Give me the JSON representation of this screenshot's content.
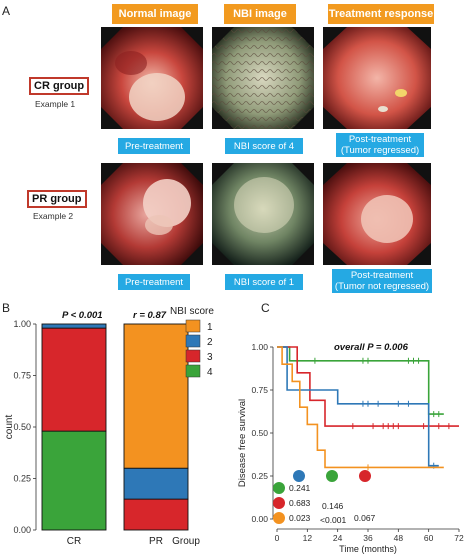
{
  "panel_a": {
    "letter": "A",
    "headers": [
      "Normal image",
      "NBI image",
      "Treatment response"
    ],
    "rows": [
      {
        "group": "CR group",
        "example": "Example 1",
        "captions": [
          [
            "Pre-treatment"
          ],
          [
            "NBI score of 4"
          ],
          [
            "Post-treatment",
            "(Tumor regressed)"
          ]
        ]
      },
      {
        "group": "PR group",
        "example": "Example 2",
        "captions": [
          [
            "Pre-treatment"
          ],
          [
            "NBI score of 1"
          ],
          [
            "Post-treatment",
            "(Tumor not regressed)"
          ]
        ]
      }
    ]
  },
  "panel_b": {
    "letter": "B",
    "stat_p": "P < 0.001",
    "stat_r": "r = 0.87",
    "legend_title": "NBI score"
  },
  "panel_c": {
    "letter": "C",
    "overall": "overall P = 0.006",
    "pvalues": {
      "r1": "0.241",
      "r2a": "0.683",
      "r2b": "0.146",
      "r3a": "0.023",
      "r3b": "<0.001",
      "r3c": "0.067"
    }
  },
  "colors": {
    "score1": "#f39220",
    "score2": "#2e78b7",
    "score3": "#d7262b",
    "score4": "#3aa43a"
  },
  "chart_data": [
    {
      "type": "bar",
      "stacked": true,
      "categories": [
        "CR",
        "PR"
      ],
      "series": [
        {
          "name": "1",
          "values": [
            0.0,
            0.7
          ]
        },
        {
          "name": "2",
          "values": [
            0.02,
            0.15
          ]
        },
        {
          "name": "3",
          "values": [
            0.5,
            0.15
          ]
        },
        {
          "name": "4",
          "values": [
            0.48,
            0.0
          ]
        }
      ],
      "xlabel": "Group",
      "ylabel": "count",
      "ylim": [
        0,
        1
      ],
      "yticks": [
        "0.00",
        "0.25",
        "0.50",
        "0.75",
        "1.00"
      ],
      "legend": "right"
    },
    {
      "type": "line",
      "step": true,
      "xlabel": "Time (months)",
      "ylabel": "Disease free survival",
      "xlim": [
        0,
        72
      ],
      "ylim": [
        0,
        1
      ],
      "xticks": [
        "0",
        "12",
        "24",
        "36",
        "48",
        "60",
        "72"
      ],
      "yticks": [
        "0.00",
        "0.25",
        "0.50",
        "0.75",
        "1.00"
      ],
      "series": [
        {
          "name": "4",
          "points": [
            [
              0,
              1
            ],
            [
              5,
              1
            ],
            [
              5,
              0.92
            ],
            [
              60,
              0.92
            ],
            [
              60,
              0.61
            ],
            [
              66,
              0.61
            ]
          ]
        },
        {
          "name": "3",
          "points": [
            [
              0,
              1
            ],
            [
              8,
              1
            ],
            [
              8,
              0.85
            ],
            [
              13,
              0.85
            ],
            [
              13,
              0.69
            ],
            [
              19,
              0.69
            ],
            [
              19,
              0.54
            ],
            [
              36,
              0.54
            ],
            [
              36,
              0.54
            ],
            [
              72,
              0.54
            ]
          ]
        },
        {
          "name": "2",
          "points": [
            [
              0,
              1
            ],
            [
              4,
              1
            ],
            [
              4,
              0.75
            ],
            [
              24,
              0.75
            ],
            [
              24,
              0.67
            ],
            [
              60,
              0.67
            ],
            [
              60,
              0.31
            ],
            [
              64,
              0.31
            ]
          ]
        },
        {
          "name": "1",
          "points": [
            [
              0,
              1
            ],
            [
              2,
              1
            ],
            [
              2,
              0.9
            ],
            [
              6,
              0.9
            ],
            [
              6,
              0.8
            ],
            [
              9,
              0.8
            ],
            [
              9,
              0.65
            ],
            [
              12,
              0.65
            ],
            [
              12,
              0.55
            ],
            [
              16,
              0.55
            ],
            [
              16,
              0.4
            ],
            [
              19,
              0.4
            ],
            [
              19,
              0.3
            ],
            [
              66,
              0.3
            ]
          ]
        }
      ],
      "censored": {
        "4": [
          15,
          34,
          36,
          52,
          54,
          56,
          62,
          64
        ],
        "3": [
          30,
          38,
          42,
          44,
          46,
          48,
          58,
          64,
          68
        ],
        "2": [
          34,
          36,
          40,
          48,
          52,
          62
        ],
        "1": [
          36
        ]
      }
    }
  ]
}
